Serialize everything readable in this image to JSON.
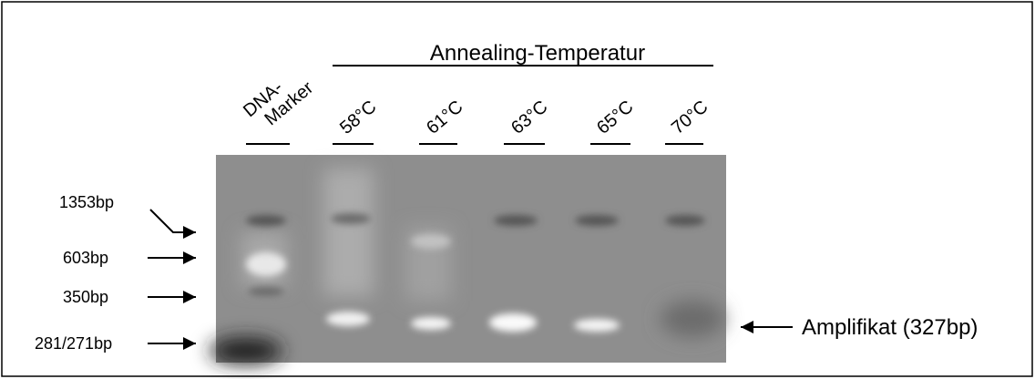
{
  "header": {
    "title": "Annealing-Temperatur"
  },
  "marker_lane": {
    "lines": [
      "DNA-",
      "Marker"
    ]
  },
  "temperature_lanes": [
    "58°C",
    "61°C",
    "63°C",
    "65°C",
    "70°C"
  ],
  "marker_sizes": [
    "1353bp",
    "603bp",
    "350bp",
    "281/271bp"
  ],
  "annotation": "Amplifikat (327bp)"
}
